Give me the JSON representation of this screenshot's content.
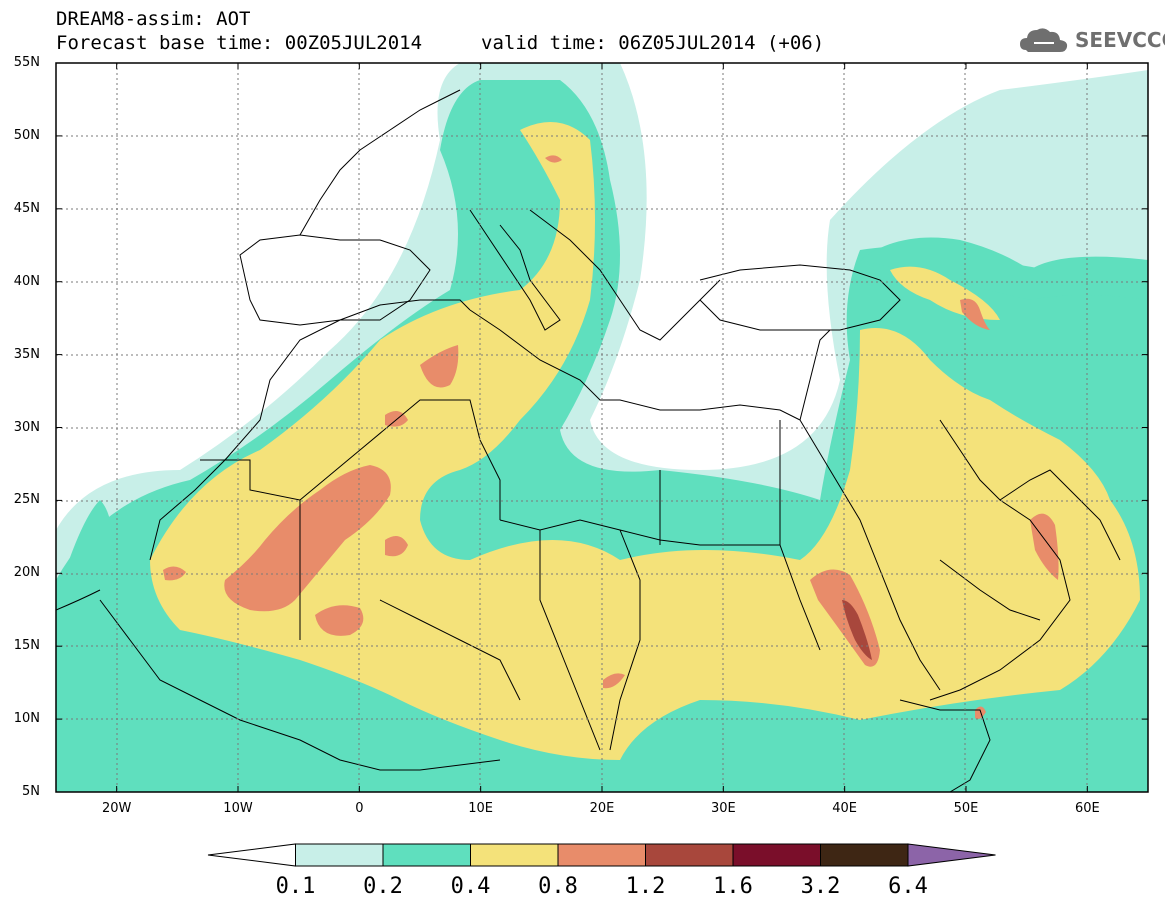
{
  "header": {
    "title_line1": "DREAM8-assim: AOT",
    "title_line2": "Forecast base time: 00Z05JUL2014",
    "valid_time": "valid time: 06Z05JUL2014 (+06)",
    "logo_text": "SEEVCCC",
    "logo_icon": "cloud-logo-icon"
  },
  "map": {
    "lon_range": [
      -25,
      65
    ],
    "lat_range": [
      5,
      55
    ],
    "lat_ticks": [
      {
        "value": 55,
        "label": "55N"
      },
      {
        "value": 50,
        "label": "50N"
      },
      {
        "value": 45,
        "label": "45N"
      },
      {
        "value": 40,
        "label": "40N"
      },
      {
        "value": 35,
        "label": "35N"
      },
      {
        "value": 30,
        "label": "30N"
      },
      {
        "value": 25,
        "label": "25N"
      },
      {
        "value": 20,
        "label": "20N"
      },
      {
        "value": 15,
        "label": "15N"
      },
      {
        "value": 10,
        "label": "10N"
      },
      {
        "value": 5,
        "label": "5N"
      }
    ],
    "lon_ticks": [
      {
        "value": -20,
        "label": "20W"
      },
      {
        "value": -10,
        "label": "10W"
      },
      {
        "value": 0,
        "label": "0"
      },
      {
        "value": 10,
        "label": "10E"
      },
      {
        "value": 20,
        "label": "20E"
      },
      {
        "value": 30,
        "label": "30E"
      },
      {
        "value": 40,
        "label": "40E"
      },
      {
        "value": 50,
        "label": "50E"
      },
      {
        "value": 60,
        "label": "60E"
      }
    ],
    "grid": true
  },
  "colorbar": {
    "levels": [
      "0.1",
      "0.2",
      "0.4",
      "0.8",
      "1.2",
      "1.6",
      "3.2",
      "6.4"
    ],
    "colors": [
      "#ffffff",
      "#c8efe8",
      "#5fdfbe",
      "#f4e27a",
      "#e88c6a",
      "#a8473c",
      "#7a0e2a",
      "#3e2614",
      "#8c64a8"
    ]
  }
}
